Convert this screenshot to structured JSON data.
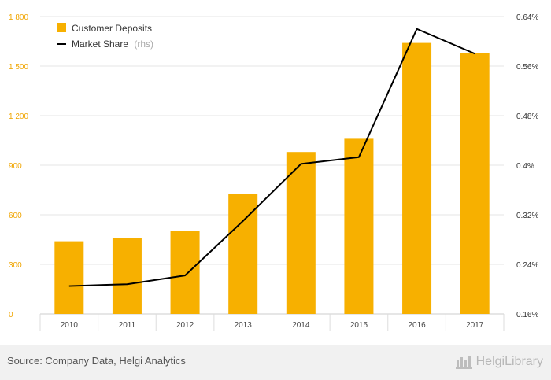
{
  "colors": {
    "bar": "#f7b000",
    "line": "#000000",
    "left_axis_text": "#f0a500",
    "right_axis_text": "#333333",
    "x_axis_text": "#444444",
    "grid": "#e6e6e6"
  },
  "legend": {
    "deposits_label": "Customer Deposits",
    "share_label": "Market Share",
    "share_suffix": "(rhs)"
  },
  "footer": {
    "source": "Source: Company Data, Helgi Analytics",
    "brand": "HelgiLibrary"
  },
  "chart_data": {
    "type": "bar",
    "categories": [
      "2010",
      "2011",
      "2012",
      "2013",
      "2014",
      "2015",
      "2016",
      "2017"
    ],
    "series": [
      {
        "name": "Customer Deposits",
        "type": "bar",
        "axis": "left",
        "values": [
          440,
          460,
          500,
          725,
          980,
          1060,
          1640,
          1580
        ]
      },
      {
        "name": "Market Share",
        "type": "line",
        "axis": "right",
        "values": [
          0.205,
          0.208,
          0.222,
          0.31,
          0.402,
          0.413,
          0.62,
          0.58
        ]
      }
    ],
    "y_left": {
      "min": 0,
      "max": 1800,
      "ticks": [
        0,
        300,
        600,
        900,
        1200,
        1500,
        1800
      ],
      "tick_labels": [
        "0",
        "300",
        "600",
        "900",
        "1 200",
        "1 500",
        "1 800"
      ]
    },
    "y_right": {
      "min": 0.16,
      "max": 0.64,
      "ticks": [
        0.16,
        0.24,
        0.32,
        0.4,
        0.48,
        0.56,
        0.64
      ],
      "tick_labels": [
        "0.16%",
        "0.24%",
        "0.32%",
        "0.4%",
        "0.48%",
        "0.56%",
        "0.64%"
      ]
    },
    "grid": true,
    "legend_position": "top-left"
  }
}
